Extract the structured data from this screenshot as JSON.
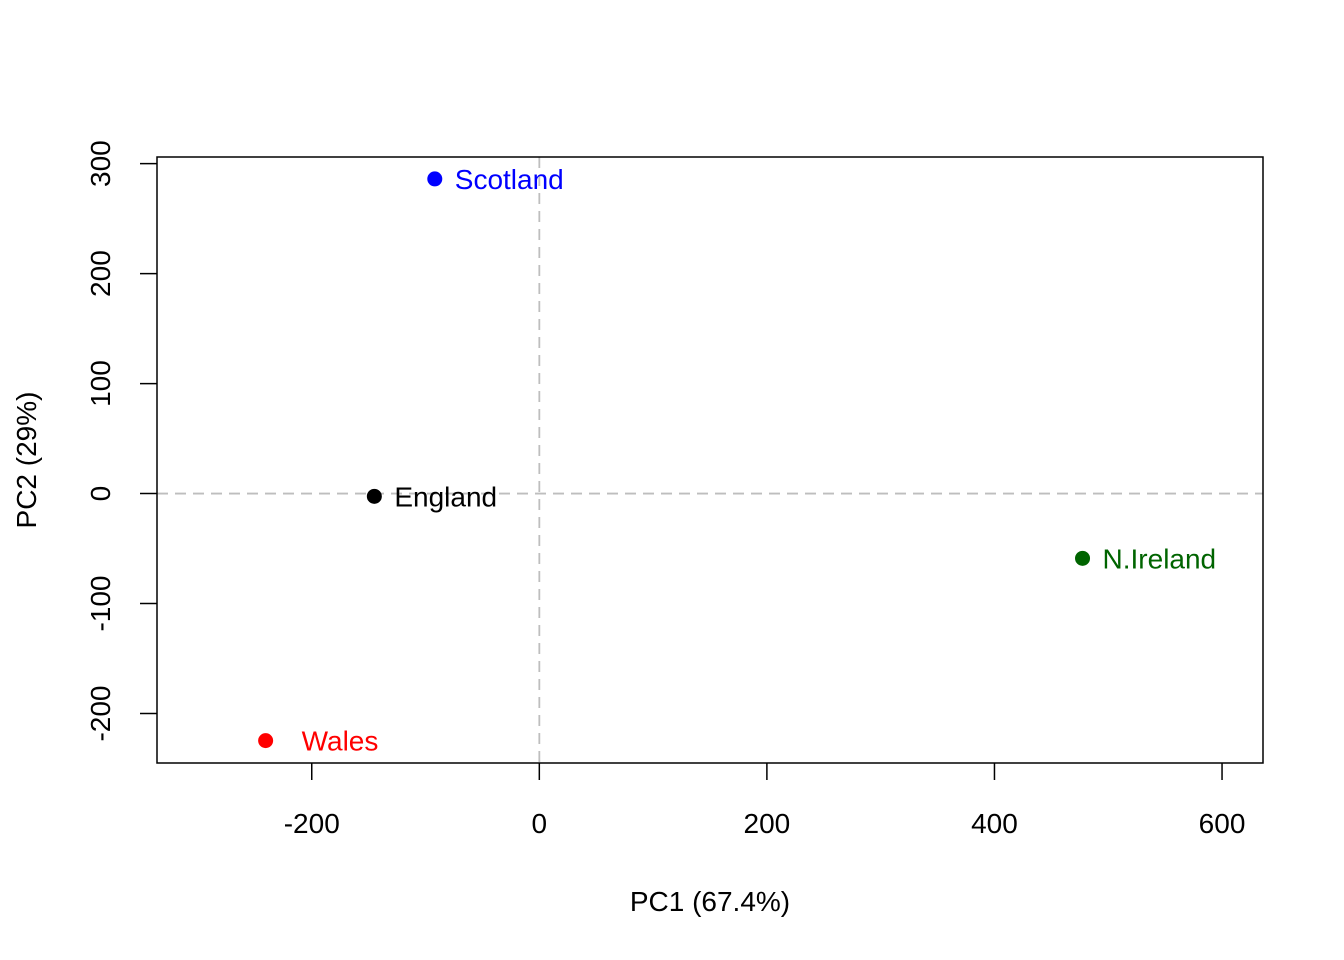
{
  "chart_data": {
    "type": "scatter",
    "title": "",
    "xlabel": "PC1 (67.4%)",
    "ylabel": "PC2 (29%)",
    "xlim": [
      -336,
      636
    ],
    "ylim": [
      -245,
      306
    ],
    "xticks": [
      -200,
      0,
      200,
      400,
      600
    ],
    "yticks": [
      -200,
      -100,
      0,
      100,
      200,
      300
    ],
    "xtick_labels": [
      "-200",
      "0",
      "200",
      "400",
      "600"
    ],
    "ytick_labels": [
      "-200",
      "-100",
      "0",
      "100",
      "200",
      "300"
    ],
    "grid": false,
    "reference_lines": {
      "x": 0,
      "y": 0,
      "style": "dashed",
      "color": "#bebebe"
    },
    "points": [
      {
        "label": "England",
        "x": -144.99,
        "y": -2.53,
        "color": "#000000"
      },
      {
        "label": "Wales",
        "x": -240.53,
        "y": -224.65,
        "color": "#ff0000"
      },
      {
        "label": "Scotland",
        "x": -91.87,
        "y": 286.08,
        "color": "#0000ff"
      },
      {
        "label": "N.Ireland",
        "x": 477.39,
        "y": -58.9,
        "color": "#006400"
      }
    ]
  }
}
